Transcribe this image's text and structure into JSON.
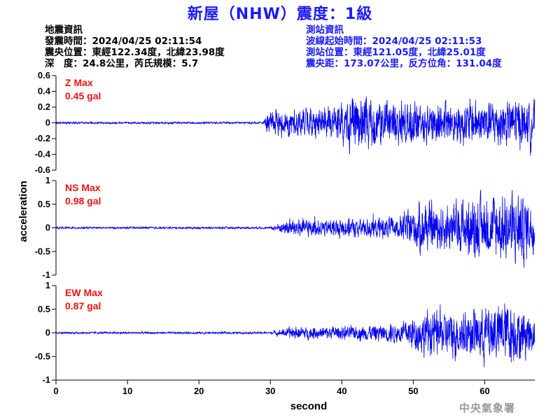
{
  "title": "新屋（NHW）震度：1級",
  "earthquake_info": {
    "heading": "地震資訊",
    "origin_time": "發震時間：2024/04/25 02:11:54",
    "epicenter": "震央位置：東經122.34度，北緯23.98度",
    "depth_magnitude": "深　度：24.8公里，芮氏規模：5.7"
  },
  "station_info": {
    "heading": "測站資訊",
    "wave_start": "波線起始時間：2024/04/25 02:11:53",
    "station_location": "測站位置：東經121.05度，北緯25.01度",
    "distance_azimuth": "震央距：173.07公里，反方位角：131.04度"
  },
  "agency": "中央氣象署",
  "colors": {
    "title": "#1a1aff",
    "trace": "#0000ee",
    "max_label": "#ee1111",
    "station_text": "#1a1aff"
  },
  "chart_data": [
    {
      "type": "line",
      "component": "Z",
      "max_label": "Z Max",
      "max_value": "0.45 gal",
      "ylim": [
        -0.6,
        0.6
      ],
      "yticks": [
        -0.6,
        -0.4,
        -0.2,
        0,
        0.2,
        0.4,
        0.6
      ],
      "ytick_labels": [
        "-0.6",
        "-0.4",
        "-0.2",
        "0",
        "0.2",
        "0.4",
        "0.6"
      ],
      "signal_onset_s": 29.2,
      "peak_abs": 0.45,
      "envelope": [
        [
          0,
          0.012
        ],
        [
          29,
          0.012
        ],
        [
          29.5,
          0.1
        ],
        [
          31,
          0.16
        ],
        [
          38,
          0.18
        ],
        [
          42,
          0.33
        ],
        [
          46,
          0.26
        ],
        [
          52,
          0.25
        ],
        [
          58,
          0.26
        ],
        [
          64,
          0.28
        ],
        [
          67,
          0.25
        ]
      ]
    },
    {
      "type": "line",
      "component": "NS",
      "max_label": "NS Max",
      "max_value": "0.98 gal",
      "ylim": [
        -1,
        1
      ],
      "yticks": [
        -1,
        -0.5,
        0,
        0.5,
        1
      ],
      "ytick_labels": [
        "-1",
        "-0.5",
        "0",
        "0.5",
        "1"
      ],
      "signal_onset_s": 30.5,
      "peak_abs": 0.98,
      "envelope": [
        [
          0,
          0.02
        ],
        [
          30,
          0.02
        ],
        [
          31,
          0.08
        ],
        [
          33,
          0.2
        ],
        [
          38,
          0.17
        ],
        [
          43,
          0.2
        ],
        [
          48,
          0.22
        ],
        [
          51,
          0.55
        ],
        [
          54,
          0.45
        ],
        [
          58,
          0.6
        ],
        [
          61,
          0.6
        ],
        [
          65,
          0.75
        ],
        [
          67,
          0.45
        ]
      ]
    },
    {
      "type": "line",
      "component": "EW",
      "max_label": "EW Max",
      "max_value": "0.87 gal",
      "ylim": [
        -1,
        1
      ],
      "yticks": [
        -1,
        -0.5,
        0,
        0.5,
        1
      ],
      "ytick_labels": [
        "-1",
        "-0.5",
        "0",
        "0.5",
        "1"
      ],
      "signal_onset_s": 30.5,
      "peak_abs": 0.87,
      "envelope": [
        [
          0,
          0.02
        ],
        [
          30,
          0.02
        ],
        [
          31,
          0.05
        ],
        [
          33,
          0.12
        ],
        [
          38,
          0.13
        ],
        [
          44,
          0.16
        ],
        [
          48,
          0.2
        ],
        [
          51,
          0.42
        ],
        [
          55,
          0.5
        ],
        [
          58,
          0.45
        ],
        [
          60,
          0.55
        ],
        [
          63,
          0.65
        ],
        [
          67,
          0.4
        ]
      ]
    }
  ],
  "x_axis": {
    "label": "second",
    "xlim": [
      0,
      67
    ],
    "ticks": [
      0,
      10,
      20,
      30,
      40,
      50,
      60
    ],
    "tick_labels": [
      "0",
      "10",
      "20",
      "30",
      "40",
      "50",
      "60"
    ]
  },
  "y_axis_label": "acceleration"
}
